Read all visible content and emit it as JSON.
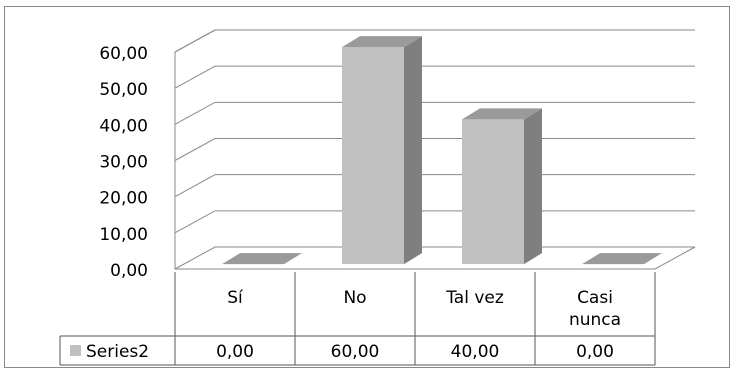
{
  "chart_data": {
    "type": "bar",
    "variant": "3d-column",
    "categories": [
      "Sí",
      "No",
      "Tal vez",
      "Casi nunca"
    ],
    "category_lines": [
      [
        "Sí"
      ],
      [
        "No"
      ],
      [
        "Tal vez"
      ],
      [
        "Casi",
        "nunca"
      ]
    ],
    "series": [
      {
        "name": "Series2",
        "values": [
          0,
          60,
          40,
          0
        ],
        "value_labels": [
          "0,00",
          "60,00",
          "40,00",
          "0,00"
        ]
      }
    ],
    "ylim": [
      0,
      60
    ],
    "yticks": [
      0,
      10,
      20,
      30,
      40,
      50,
      60
    ],
    "ytick_labels": [
      "0,00",
      "10,00",
      "20,00",
      "30,00",
      "40,00",
      "50,00",
      "60,00"
    ],
    "grid": true,
    "legend": "data-table",
    "colors": {
      "front": "#c0c0c0",
      "side": "#7f7f7f",
      "top": "#9a9a9a",
      "grid": "#8a8a8a"
    }
  }
}
